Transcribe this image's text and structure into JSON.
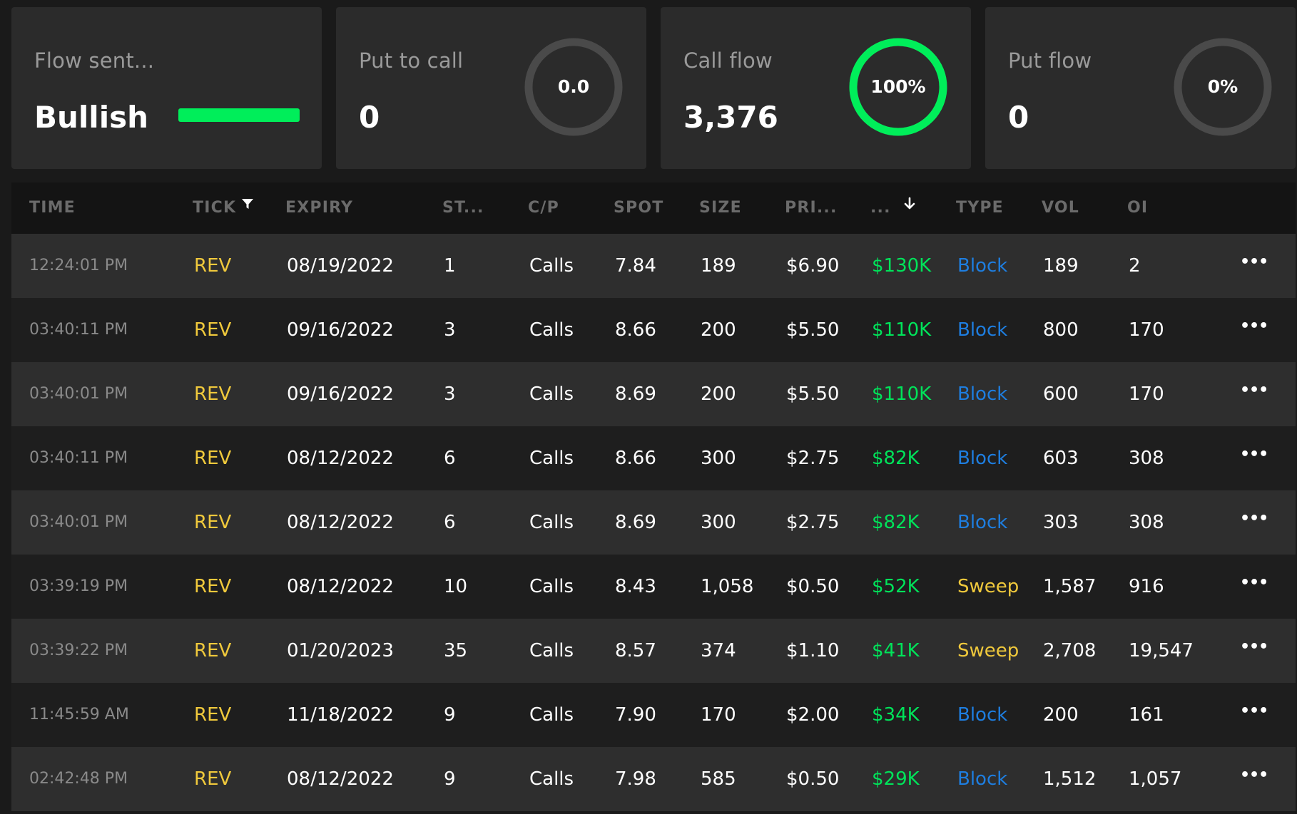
{
  "cards": {
    "sentiment": {
      "label": "Flow sent...",
      "value": "Bullish",
      "bar_fraction": 1.0,
      "bar_color": "#00ee5a"
    },
    "put_to_call": {
      "label": "Put to call",
      "value": "0",
      "ring_text": "0.0",
      "ring_fraction": 0.0
    },
    "call_flow": {
      "label": "Call flow",
      "value": "3,376",
      "ring_text": "100%",
      "ring_fraction": 1.0,
      "ring_color": "#00ee5a"
    },
    "put_flow": {
      "label": "Put flow",
      "value": "0",
      "ring_text": "0%",
      "ring_fraction": 0.0
    }
  },
  "table": {
    "columns": {
      "time": "TIME",
      "tick": "TICK",
      "expiry": "EXPIRY",
      "strike": "ST...",
      "cp": "C/P",
      "spot": "SPOT",
      "size": "SIZE",
      "price": "PRI...",
      "premium": "...",
      "type": "TYPE",
      "vol": "VOL",
      "oi": "OI"
    },
    "rows": [
      {
        "time": "12:24:01 PM",
        "tick": "REV",
        "expiry": "08/19/2022",
        "strike": "1",
        "cp": "Calls",
        "spot": "7.84",
        "size": "189",
        "price": "$6.90",
        "premium": "$130K",
        "type": "Block",
        "vol": "189",
        "oi": "2"
      },
      {
        "time": "03:40:11 PM",
        "tick": "REV",
        "expiry": "09/16/2022",
        "strike": "3",
        "cp": "Calls",
        "spot": "8.66",
        "size": "200",
        "price": "$5.50",
        "premium": "$110K",
        "type": "Block",
        "vol": "800",
        "oi": "170"
      },
      {
        "time": "03:40:01 PM",
        "tick": "REV",
        "expiry": "09/16/2022",
        "strike": "3",
        "cp": "Calls",
        "spot": "8.69",
        "size": "200",
        "price": "$5.50",
        "premium": "$110K",
        "type": "Block",
        "vol": "600",
        "oi": "170"
      },
      {
        "time": "03:40:11 PM",
        "tick": "REV",
        "expiry": "08/12/2022",
        "strike": "6",
        "cp": "Calls",
        "spot": "8.66",
        "size": "300",
        "price": "$2.75",
        "premium": "$82K",
        "type": "Block",
        "vol": "603",
        "oi": "308"
      },
      {
        "time": "03:40:01 PM",
        "tick": "REV",
        "expiry": "08/12/2022",
        "strike": "6",
        "cp": "Calls",
        "spot": "8.69",
        "size": "300",
        "price": "$2.75",
        "premium": "$82K",
        "type": "Block",
        "vol": "303",
        "oi": "308"
      },
      {
        "time": "03:39:19 PM",
        "tick": "REV",
        "expiry": "08/12/2022",
        "strike": "10",
        "cp": "Calls",
        "spot": "8.43",
        "size": "1,058",
        "price": "$0.50",
        "premium": "$52K",
        "type": "Sweep",
        "vol": "1,587",
        "oi": "916"
      },
      {
        "time": "03:39:22 PM",
        "tick": "REV",
        "expiry": "01/20/2023",
        "strike": "35",
        "cp": "Calls",
        "spot": "8.57",
        "size": "374",
        "price": "$1.10",
        "premium": "$41K",
        "type": "Sweep",
        "vol": "2,708",
        "oi": "19,547"
      },
      {
        "time": "11:45:59 AM",
        "tick": "REV",
        "expiry": "11/18/2022",
        "strike": "9",
        "cp": "Calls",
        "spot": "7.90",
        "size": "170",
        "price": "$2.00",
        "premium": "$34K",
        "type": "Block",
        "vol": "200",
        "oi": "161"
      },
      {
        "time": "02:42:48 PM",
        "tick": "REV",
        "expiry": "08/12/2022",
        "strike": "9",
        "cp": "Calls",
        "spot": "7.98",
        "size": "585",
        "price": "$0.50",
        "premium": "$29K",
        "type": "Block",
        "vol": "1,512",
        "oi": "1,057"
      }
    ],
    "more_glyph": "•••"
  },
  "colors": {
    "accent_green": "#00ee5a",
    "ticker_yellow": "#f0c93c",
    "block_blue": "#1e7ee0",
    "sweep_yellow": "#f0c93c"
  },
  "icons": {
    "tick_header": "filter-icon",
    "premium_header": "sort-desc-icon",
    "row_action": "more-icon"
  }
}
